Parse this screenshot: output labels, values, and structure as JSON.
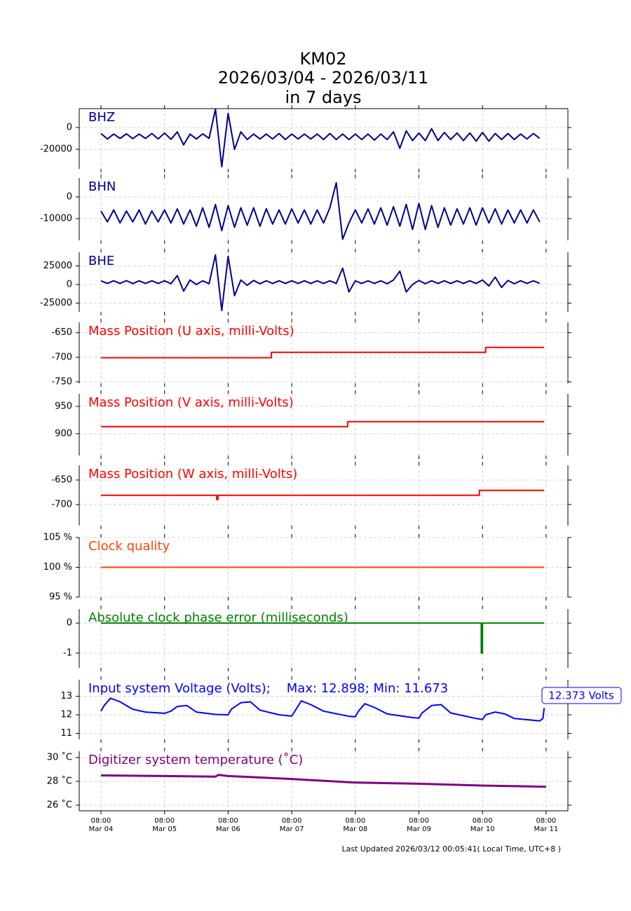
{
  "header": {
    "title": [
      "KM02",
      "2026/03/04 - 2026/03/11",
      "in 7 days"
    ]
  },
  "footer": "Last Updated 2026/03/12 00:05:41( Local Time, UTC+8 )",
  "chart_data": [
    {
      "type": "waveform",
      "title": "BHZ",
      "title_color": "#00008b",
      "xlim": [
        -0.342,
        7.343
      ],
      "xticks": [
        0,
        1,
        2,
        3,
        4,
        5,
        6,
        7
      ],
      "ylim": [
        -38000,
        17400
      ],
      "yticks": [
        0,
        -20000
      ],
      "grid": true,
      "x": [
        0,
        0.1,
        0.2,
        0.3,
        0.4,
        0.5,
        0.6,
        0.7,
        0.8,
        0.9,
        1,
        1.1,
        1.2,
        1.3,
        1.4,
        1.5,
        1.6,
        1.7,
        1.8,
        1.9,
        2,
        2.1,
        2.2,
        2.3,
        2.4,
        2.5,
        2.6,
        2.7,
        2.8,
        2.9,
        3,
        3.1,
        3.2,
        3.3,
        3.4,
        3.5,
        3.6,
        3.7,
        3.8,
        3.9,
        4,
        4.1,
        4.2,
        4.3,
        4.4,
        4.5,
        4.6,
        4.7,
        4.8,
        4.9,
        5,
        5.1,
        5.2,
        5.3,
        5.4,
        5.5,
        5.6,
        5.7,
        5.8,
        5.9,
        6,
        6.1,
        6.2,
        6.3,
        6.4,
        6.5,
        6.6,
        6.7,
        6.8,
        6.9
      ],
      "series": [
        {
          "color": "#00008b",
          "values": [
            -5500,
            -10500,
            -6000,
            -10000,
            -5800,
            -10200,
            -6000,
            -10000,
            -5500,
            -10500,
            -5000,
            -10800,
            -4000,
            -16000,
            -6000,
            -10500,
            -5800,
            -10000,
            17000,
            -36000,
            13000,
            -20000,
            -4000,
            -11000,
            -6000,
            -10500,
            -6000,
            -10500,
            -5500,
            -11000,
            -6000,
            -10500,
            -6000,
            -10500,
            -6000,
            -11000,
            -5500,
            -11000,
            -6000,
            -11000,
            -6000,
            -11000,
            -6000,
            -11500,
            -6000,
            -11000,
            -4000,
            -19000,
            -3000,
            -12000,
            -5000,
            -12000,
            -1000,
            -12000,
            -4500,
            -11000,
            -5000,
            -12000,
            -5000,
            -12500,
            -4500,
            -12500,
            -5500,
            -11000,
            -5500,
            -11000,
            -6000,
            -10500,
            -5500,
            -10000
          ]
        }
      ]
    },
    {
      "type": "waveform",
      "title": "BHN",
      "title_color": "#00008b",
      "xlim": [
        -0.342,
        7.343
      ],
      "xticks": [
        0,
        1,
        2,
        3,
        4,
        5,
        6,
        7
      ],
      "ylim": [
        -20000,
        8700
      ],
      "yticks": [
        0,
        -10000
      ],
      "grid": true,
      "x": [
        0,
        0.1,
        0.2,
        0.3,
        0.4,
        0.5,
        0.6,
        0.7,
        0.8,
        0.9,
        1,
        1.1,
        1.2,
        1.3,
        1.4,
        1.5,
        1.6,
        1.7,
        1.8,
        1.9,
        2,
        2.1,
        2.2,
        2.3,
        2.4,
        2.5,
        2.6,
        2.7,
        2.8,
        2.9,
        3,
        3.1,
        3.2,
        3.3,
        3.4,
        3.5,
        3.6,
        3.7,
        3.8,
        3.9,
        4,
        4.1,
        4.2,
        4.3,
        4.4,
        4.5,
        4.6,
        4.7,
        4.8,
        4.9,
        5,
        5.1,
        5.2,
        5.3,
        5.4,
        5.5,
        5.6,
        5.7,
        5.8,
        5.9,
        6,
        6.1,
        6.2,
        6.3,
        6.4,
        6.5,
        6.6,
        6.7,
        6.8,
        6.9
      ],
      "series": [
        {
          "color": "#00008b",
          "values": [
            -6500,
            -11500,
            -6000,
            -12000,
            -6500,
            -11500,
            -6000,
            -12500,
            -6500,
            -11500,
            -6000,
            -12000,
            -5500,
            -12500,
            -6000,
            -13500,
            -5000,
            -14000,
            -3500,
            -15500,
            -4000,
            -14000,
            -5000,
            -13000,
            -5000,
            -13500,
            -5500,
            -12500,
            -6000,
            -12500,
            -5500,
            -12000,
            -6000,
            -12500,
            -6000,
            -12000,
            -5000,
            6500,
            -19500,
            -12000,
            -6000,
            -12000,
            -5500,
            -12500,
            -5000,
            -13000,
            -4500,
            -13500,
            -3500,
            -15000,
            -3000,
            -15000,
            -4000,
            -14000,
            -5000,
            -13000,
            -5500,
            -12500,
            -5000,
            -13000,
            -5000,
            -12000,
            -5500,
            -12500,
            -6000,
            -12000,
            -6000,
            -12000,
            -6000,
            -11500
          ]
        }
      ]
    },
    {
      "type": "waveform",
      "title": "BHE",
      "title_color": "#00008b",
      "xlim": [
        -0.342,
        7.343
      ],
      "xticks": [
        0,
        1,
        2,
        3,
        4,
        5,
        6,
        7
      ],
      "ylim": [
        -36800,
        43400
      ],
      "yticks": [
        25000,
        0,
        -25000
      ],
      "grid": true,
      "x": [
        0,
        0.1,
        0.2,
        0.3,
        0.4,
        0.5,
        0.6,
        0.7,
        0.8,
        0.9,
        1,
        1.1,
        1.2,
        1.3,
        1.4,
        1.5,
        1.6,
        1.7,
        1.8,
        1.9,
        2,
        2.1,
        2.2,
        2.3,
        2.4,
        2.5,
        2.6,
        2.7,
        2.8,
        2.9,
        3,
        3.1,
        3.2,
        3.3,
        3.4,
        3.5,
        3.6,
        3.7,
        3.8,
        3.9,
        4,
        4.1,
        4.2,
        4.3,
        4.4,
        4.5,
        4.6,
        4.7,
        4.8,
        4.9,
        5,
        5.1,
        5.2,
        5.3,
        5.4,
        5.5,
        5.6,
        5.7,
        5.8,
        5.9,
        6,
        6.1,
        6.2,
        6.3,
        6.4,
        6.5,
        6.6,
        6.7,
        6.8,
        6.9
      ],
      "series": [
        {
          "color": "#00008b",
          "values": [
            5000,
            1500,
            5000,
            1500,
            5200,
            1200,
            5000,
            1500,
            5000,
            1500,
            5000,
            1000,
            12000,
            -9000,
            6000,
            0,
            5000,
            1000,
            40000,
            -35000,
            38000,
            -15000,
            6000,
            -1000,
            5500,
            1000,
            5000,
            1500,
            5000,
            1500,
            5000,
            1500,
            5000,
            1500,
            5000,
            1500,
            5000,
            1500,
            22000,
            -10000,
            5000,
            1500,
            5000,
            1500,
            5000,
            1000,
            6000,
            18000,
            -10000,
            0,
            5500,
            1000,
            5000,
            1500,
            5000,
            1500,
            5000,
            1500,
            5000,
            1500,
            6000,
            -2000,
            10000,
            -4000,
            5500,
            1000,
            5000,
            1500,
            5000,
            1500
          ]
        }
      ]
    },
    {
      "type": "line",
      "title": "Mass Position (U axis, milli-Volts)",
      "title_color": "#ff0000",
      "xlim": [
        -0.342,
        7.343
      ],
      "xticks": [
        0,
        1,
        2,
        3,
        4,
        5,
        6,
        7
      ],
      "ylim": [
        -753,
        -629
      ],
      "yticks": [
        -650,
        -700,
        -750
      ],
      "grid": true,
      "x": [
        0,
        2.68,
        2.68,
        6.05,
        6.05,
        6.97
      ],
      "series": [
        {
          "color": "#ff0000",
          "values": [
            -701,
            -701,
            -690,
            -690,
            -680,
            -680
          ]
        }
      ]
    },
    {
      "type": "line",
      "title": "Mass Position (V axis, milli-Volts)",
      "title_color": "#ff0000",
      "xlim": [
        -0.342,
        7.343
      ],
      "xticks": [
        0,
        1,
        2,
        3,
        4,
        5,
        6,
        7
      ],
      "ylim": [
        860,
        973
      ],
      "yticks": [
        950,
        900
      ],
      "grid": true,
      "x": [
        0,
        3.88,
        3.88,
        6.97
      ],
      "series": [
        {
          "color": "#ff0000",
          "values": [
            913,
            913,
            922,
            922
          ]
        }
      ]
    },
    {
      "type": "line",
      "title": "Mass Position (W axis, milli-Volts)",
      "title_color": "#ff0000",
      "xlim": [
        -0.342,
        7.343
      ],
      "xticks": [
        0,
        1,
        2,
        3,
        4,
        5,
        6,
        7
      ],
      "ylim": [
        -743,
        -620
      ],
      "yticks": [
        -650,
        -700
      ],
      "grid": true,
      "x": [
        0,
        1.82,
        1.82,
        1.84,
        1.84,
        5.95,
        5.95,
        6.97
      ],
      "series": [
        {
          "color": "#ff0000",
          "values": [
            -681,
            -681,
            -690,
            -690,
            -681,
            -681,
            -671,
            -671
          ]
        }
      ]
    },
    {
      "type": "line",
      "title": "Clock quality",
      "title_color": "#ff4500",
      "xlim": [
        -0.342,
        7.343
      ],
      "xticks": [
        0,
        1,
        2,
        3,
        4,
        5,
        6,
        7
      ],
      "ylim": [
        95,
        105
      ],
      "yticks": [
        {
          "value": 105,
          "label": "105 %"
        },
        {
          "value": 100,
          "label": "100 %"
        },
        {
          "value": 95,
          "label": "95 %"
        }
      ],
      "grid": true,
      "x": [
        0,
        6.97
      ],
      "series": [
        {
          "color": "#ff4500",
          "values": [
            100,
            100
          ]
        }
      ]
    },
    {
      "type": "line",
      "title": "Absolute clock phase error (milliseconds)",
      "title_color": "#008000",
      "xlim": [
        -0.342,
        7.343
      ],
      "xticks": [
        0,
        1,
        2,
        3,
        4,
        5,
        6,
        7
      ],
      "ylim": [
        -1.49,
        0.47
      ],
      "yticks": [
        0,
        -1
      ],
      "grid": true,
      "x": [
        0,
        5.98,
        5.98,
        6.0,
        6.0,
        6.97
      ],
      "series": [
        {
          "color": "#008000",
          "values": [
            0,
            0,
            -1,
            -1,
            0,
            0
          ]
        }
      ]
    },
    {
      "type": "line",
      "title": "Input system Voltage (Volts);    Max: 12.898; Min: 11.673",
      "title_color": "#0000ff",
      "annotation": "12.373 Volts",
      "xlim": [
        -0.342,
        7.343
      ],
      "xticks": [
        0,
        1,
        2,
        3,
        4,
        5,
        6,
        7
      ],
      "ylim": [
        10.68,
        13.89
      ],
      "yticks": [
        13,
        12,
        11
      ],
      "grid": true,
      "x": [
        0,
        0.05,
        0.15,
        0.3,
        0.5,
        0.7,
        1.0,
        1.1,
        1.2,
        1.35,
        1.5,
        1.8,
        2.0,
        2.05,
        2.2,
        2.35,
        2.5,
        2.8,
        3.0,
        3.05,
        3.15,
        3.3,
        3.5,
        3.9,
        4.0,
        4.05,
        4.15,
        4.3,
        4.5,
        4.9,
        5.0,
        5.05,
        5.2,
        5.35,
        5.5,
        5.9,
        6.0,
        6.05,
        6.2,
        6.35,
        6.5,
        6.9,
        6.95,
        6.97
      ],
      "series": [
        {
          "color": "#0000ff",
          "values": [
            12.2,
            12.5,
            12.898,
            12.7,
            12.3,
            12.15,
            12.08,
            12.2,
            12.45,
            12.5,
            12.15,
            12.02,
            12.0,
            12.3,
            12.65,
            12.7,
            12.25,
            12.0,
            11.93,
            12.2,
            12.75,
            12.55,
            12.2,
            11.92,
            11.9,
            12.2,
            12.6,
            12.4,
            12.05,
            11.85,
            11.82,
            12.1,
            12.5,
            12.55,
            12.1,
            11.8,
            11.75,
            12.0,
            12.15,
            12.05,
            11.8,
            11.673,
            11.8,
            12.373
          ]
        }
      ]
    },
    {
      "type": "line",
      "title": "Digitizer system temperature (˚C)",
      "title_color": "#800080",
      "xlim": [
        -0.342,
        7.343
      ],
      "xticks": [
        {
          "value": 0,
          "label": "08:00\nMar 04"
        },
        {
          "value": 1,
          "label": "08:00\nMar 05"
        },
        {
          "value": 2,
          "label": "08:00\nMar 06"
        },
        {
          "value": 3,
          "label": "08:00\nMar 07"
        },
        {
          "value": 4,
          "label": "08:00\nMar 08"
        },
        {
          "value": 5,
          "label": "08:00\nMar 09"
        },
        {
          "value": 6,
          "label": "08:00\nMar 10"
        },
        {
          "value": 7,
          "label": "08:00\nMar 11"
        }
      ],
      "ylim": [
        25.53,
        30.53
      ],
      "yticks": [
        {
          "value": 30,
          "label": "30 ˚C"
        },
        {
          "value": 28,
          "label": "28 ˚C"
        },
        {
          "value": 26,
          "label": "26 ˚C"
        }
      ],
      "grid": true,
      "x": [
        0,
        1,
        1.8,
        1.85,
        2,
        3,
        4,
        5,
        6,
        7
      ],
      "series": [
        {
          "color": "#800080",
          "values": [
            28.5,
            28.45,
            28.4,
            28.55,
            28.45,
            28.2,
            27.9,
            27.8,
            27.65,
            27.55
          ]
        }
      ]
    }
  ]
}
